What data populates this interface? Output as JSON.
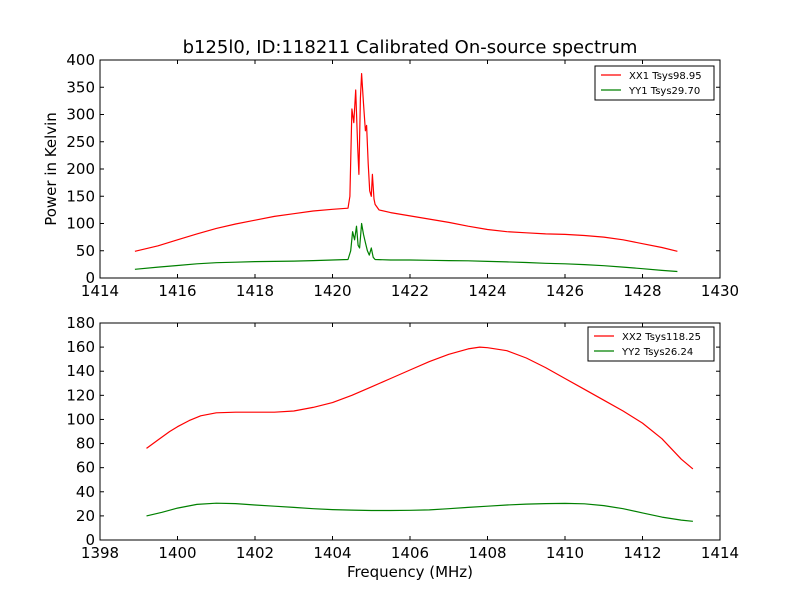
{
  "title": "b125l0, ID:118211 Calibrated On-source spectrum",
  "xlabel": "Frequency (MHz)",
  "chart_data": [
    {
      "type": "line",
      "ylabel": "Power in Kelvin",
      "xlim": [
        1414,
        1430
      ],
      "ylim": [
        0,
        400
      ],
      "xticks": [
        1414,
        1416,
        1418,
        1420,
        1422,
        1424,
        1426,
        1428,
        1430
      ],
      "yticks": [
        0,
        50,
        100,
        150,
        200,
        250,
        300,
        350,
        400
      ],
      "legend_position": "top-right",
      "series": [
        {
          "name": "XX1 Tsys98.95",
          "color": "#ff0000",
          "points": [
            [
              1414.9,
              49
            ],
            [
              1415.5,
              59
            ],
            [
              1416.0,
              70
            ],
            [
              1416.5,
              81
            ],
            [
              1417.0,
              91
            ],
            [
              1417.5,
              99
            ],
            [
              1418.0,
              106
            ],
            [
              1418.5,
              113
            ],
            [
              1419.0,
              118
            ],
            [
              1419.5,
              123
            ],
            [
              1420.0,
              126
            ],
            [
              1420.4,
              128
            ],
            [
              1420.45,
              150
            ],
            [
              1420.5,
              310
            ],
            [
              1420.55,
              285
            ],
            [
              1420.6,
              345
            ],
            [
              1420.65,
              240
            ],
            [
              1420.68,
              190
            ],
            [
              1420.72,
              330
            ],
            [
              1420.75,
              375
            ],
            [
              1420.8,
              320
            ],
            [
              1420.85,
              270
            ],
            [
              1420.88,
              280
            ],
            [
              1420.92,
              210
            ],
            [
              1420.96,
              160
            ],
            [
              1421.0,
              150
            ],
            [
              1421.03,
              190
            ],
            [
              1421.07,
              145
            ],
            [
              1421.1,
              135
            ],
            [
              1421.2,
              125
            ],
            [
              1421.5,
              120
            ],
            [
              1422.0,
              114
            ],
            [
              1422.5,
              108
            ],
            [
              1423.0,
              102
            ],
            [
              1423.5,
              95
            ],
            [
              1424.0,
              89
            ],
            [
              1424.5,
              85
            ],
            [
              1425.0,
              83
            ],
            [
              1425.5,
              81
            ],
            [
              1426.0,
              80
            ],
            [
              1426.5,
              78
            ],
            [
              1427.0,
              75
            ],
            [
              1427.5,
              70
            ],
            [
              1428.0,
              63
            ],
            [
              1428.5,
              56
            ],
            [
              1428.9,
              49
            ]
          ]
        },
        {
          "name": "YY1 Tsys29.70",
          "color": "#008000",
          "points": [
            [
              1414.9,
              16
            ],
            [
              1415.5,
              20
            ],
            [
              1416.0,
              23
            ],
            [
              1416.5,
              26
            ],
            [
              1417.0,
              28
            ],
            [
              1417.5,
              29
            ],
            [
              1418.0,
              30
            ],
            [
              1418.5,
              30.5
            ],
            [
              1419.0,
              31
            ],
            [
              1419.5,
              32
            ],
            [
              1420.0,
              33
            ],
            [
              1420.4,
              34
            ],
            [
              1420.47,
              50
            ],
            [
              1420.52,
              85
            ],
            [
              1420.57,
              70
            ],
            [
              1420.62,
              95
            ],
            [
              1420.66,
              60
            ],
            [
              1420.7,
              55
            ],
            [
              1420.75,
              100
            ],
            [
              1420.8,
              80
            ],
            [
              1420.85,
              65
            ],
            [
              1420.9,
              50
            ],
            [
              1420.95,
              42
            ],
            [
              1421.0,
              55
            ],
            [
              1421.05,
              38
            ],
            [
              1421.1,
              34
            ],
            [
              1421.5,
              33
            ],
            [
              1422.0,
              33
            ],
            [
              1422.5,
              32.5
            ],
            [
              1423.0,
              32
            ],
            [
              1423.5,
              31.5
            ],
            [
              1424.0,
              30.5
            ],
            [
              1424.5,
              29.5
            ],
            [
              1425.0,
              28.5
            ],
            [
              1425.5,
              27
            ],
            [
              1426.0,
              26
            ],
            [
              1426.5,
              24.5
            ],
            [
              1427.0,
              22.5
            ],
            [
              1427.5,
              20
            ],
            [
              1428.0,
              17
            ],
            [
              1428.5,
              14
            ],
            [
              1428.9,
              12
            ]
          ]
        }
      ]
    },
    {
      "type": "line",
      "xlim": [
        1398,
        1414
      ],
      "ylim": [
        0,
        180
      ],
      "xticks": [
        1398,
        1400,
        1402,
        1404,
        1406,
        1408,
        1410,
        1412,
        1414
      ],
      "yticks": [
        0,
        20,
        40,
        60,
        80,
        100,
        120,
        140,
        160,
        180
      ],
      "legend_position": "top-right",
      "series": [
        {
          "name": "XX2 Tsys118.25",
          "color": "#ff0000",
          "points": [
            [
              1399.2,
              76
            ],
            [
              1399.5,
              83
            ],
            [
              1399.8,
              90
            ],
            [
              1400.0,
              94
            ],
            [
              1400.3,
              99
            ],
            [
              1400.6,
              103
            ],
            [
              1401.0,
              105.5
            ],
            [
              1401.5,
              106
            ],
            [
              1402.0,
              106
            ],
            [
              1402.5,
              106
            ],
            [
              1403.0,
              107
            ],
            [
              1403.5,
              110
            ],
            [
              1404.0,
              114
            ],
            [
              1404.5,
              120
            ],
            [
              1405.0,
              127
            ],
            [
              1405.5,
              134
            ],
            [
              1406.0,
              141
            ],
            [
              1406.5,
              148
            ],
            [
              1407.0,
              154
            ],
            [
              1407.5,
              158.5
            ],
            [
              1407.8,
              160
            ],
            [
              1408.0,
              159.5
            ],
            [
              1408.5,
              157
            ],
            [
              1409.0,
              151
            ],
            [
              1409.5,
              143
            ],
            [
              1410.0,
              134
            ],
            [
              1410.5,
              125
            ],
            [
              1411.0,
              116
            ],
            [
              1411.5,
              107
            ],
            [
              1412.0,
              97
            ],
            [
              1412.5,
              84
            ],
            [
              1413.0,
              67
            ],
            [
              1413.3,
              59
            ]
          ]
        },
        {
          "name": "YY2 Tsys26.24",
          "color": "#008000",
          "points": [
            [
              1399.2,
              20
            ],
            [
              1399.6,
              23
            ],
            [
              1400.0,
              26.5
            ],
            [
              1400.5,
              29.5
            ],
            [
              1401.0,
              30.5
            ],
            [
              1401.5,
              30.2
            ],
            [
              1402.0,
              29
            ],
            [
              1402.5,
              28
            ],
            [
              1403.0,
              27
            ],
            [
              1403.5,
              26
            ],
            [
              1404.0,
              25.2
            ],
            [
              1404.5,
              24.8
            ],
            [
              1405.0,
              24.5
            ],
            [
              1405.5,
              24.5
            ],
            [
              1406.0,
              24.6
            ],
            [
              1406.5,
              25
            ],
            [
              1407.0,
              26
            ],
            [
              1407.5,
              27
            ],
            [
              1408.0,
              28
            ],
            [
              1408.5,
              29
            ],
            [
              1409.0,
              29.8
            ],
            [
              1409.5,
              30.2
            ],
            [
              1410.0,
              30.4
            ],
            [
              1410.5,
              30
            ],
            [
              1411.0,
              28.5
            ],
            [
              1411.5,
              26
            ],
            [
              1412.0,
              22.5
            ],
            [
              1412.5,
              19
            ],
            [
              1413.0,
              16.5
            ],
            [
              1413.3,
              15.5
            ]
          ]
        }
      ]
    }
  ]
}
